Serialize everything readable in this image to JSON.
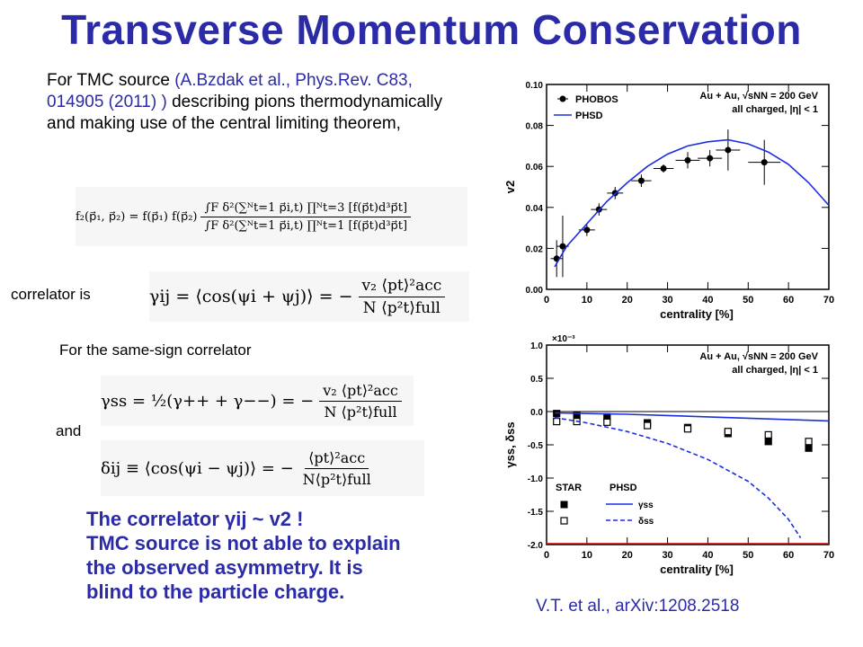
{
  "title": "Transverse Momentum Conservation",
  "intro": {
    "before": "For TMC source ",
    "reference": "(A.Bzdak et al., Phys.Rev. C83, 014905 (2011) )",
    "after": " describing pions thermodynamically and making use of the central limiting theorem,"
  },
  "labels": {
    "correlator_is": "correlator is",
    "same_sign": "For the same-sign correlator",
    "and": "and"
  },
  "equations": {
    "f2_lhs": "f₂(p⃗₁, p⃗₂) = f(p⃗₁) f(p⃗₂)",
    "f2_num": "∫F δ²(∑ᴺt=1 p⃗i,t) ∏ᴺt=3 [f(p⃗t)d³p⃗t]",
    "f2_den": "∫F δ²(∑ᴺt=1 p⃗i,t) ∏ᴺt=1 [f(p⃗t)d³p⃗t]",
    "gamma_lhs": "γij = ⟨cos(ψi + ψj)⟩ = −",
    "gamma_num": "v₂ ⟨pt⟩²acc",
    "gamma_den": "N ⟨p²t⟩full",
    "gss_lhs": "γss = ½(γ++ + γ−−) = −",
    "gss_num": "v₂ ⟨pt⟩²acc",
    "gss_den": "N ⟨p²t⟩full",
    "delta_lhs": "δij ≡ ⟨cos(ψi − ψj)⟩ = −",
    "delta_num": "⟨pt⟩²acc",
    "delta_den": "N⟨p²t⟩full"
  },
  "conclusion": {
    "line1": "The correlator γij ~ v2 !",
    "line2": "TMC source is not able to explain",
    "line3": "the observed asymmetry. It is",
    "line4": "blind to the particle charge."
  },
  "citation": "V.T. et al., arXiv:1208.2518",
  "colors": {
    "title": "#2b2ba8",
    "model": "#1a2ee0",
    "zero_line": "#cc0000"
  },
  "chart_data": [
    {
      "type": "scatter",
      "xlabel": "centrality [%]",
      "ylabel": "v2",
      "xlim": [
        0,
        70
      ],
      "ylim": [
        0,
        0.1
      ],
      "xticks": [
        "0",
        "10",
        "20",
        "30",
        "40",
        "50",
        "60",
        "70"
      ],
      "yticks": [
        "0.00",
        "0.02",
        "0.04",
        "0.06",
        "0.08",
        "0.10"
      ],
      "annotation_line1": "Au + Au, √sNN = 200 GeV",
      "annotation_line2": "all charged, |η| < 1",
      "legend": [
        "PHOBOS",
        "PHSD"
      ],
      "legend_position": "top-left",
      "series": [
        {
          "name": "PHOBOS",
          "style": "points",
          "points": [
            {
              "x": 2.5,
              "y": 0.015,
              "yerr": 0.009,
              "xerr": 1.5
            },
            {
              "x": 4,
              "y": 0.021,
              "yerr": 0.015,
              "xerr": 1.5
            },
            {
              "x": 10,
              "y": 0.029,
              "yerr": 0.003,
              "xerr": 2
            },
            {
              "x": 13,
              "y": 0.039,
              "yerr": 0.003,
              "xerr": 2
            },
            {
              "x": 17,
              "y": 0.047,
              "yerr": 0.003,
              "xerr": 2
            },
            {
              "x": 23.5,
              "y": 0.053,
              "yerr": 0.003,
              "xerr": 2.5
            },
            {
              "x": 29,
              "y": 0.059,
              "yerr": 0.002,
              "xerr": 2.5
            },
            {
              "x": 35,
              "y": 0.063,
              "yerr": 0.004,
              "xerr": 3
            },
            {
              "x": 40.5,
              "y": 0.064,
              "yerr": 0.004,
              "xerr": 3
            },
            {
              "x": 45,
              "y": 0.068,
              "yerr": 0.01,
              "xerr": 3
            },
            {
              "x": 54,
              "y": 0.062,
              "yerr": 0.011,
              "xerr": 4
            }
          ]
        },
        {
          "name": "PHSD",
          "style": "solid",
          "x": [
            2,
            5,
            10,
            15,
            20,
            25,
            30,
            35,
            40,
            45,
            50,
            55,
            60,
            65,
            70
          ],
          "y": [
            0.011,
            0.021,
            0.032,
            0.043,
            0.052,
            0.06,
            0.066,
            0.07,
            0.072,
            0.073,
            0.071,
            0.067,
            0.061,
            0.052,
            0.041
          ]
        }
      ]
    },
    {
      "type": "scatter",
      "xlabel": "centrality [%]",
      "ylabel": "γss, δss",
      "scale_label": "×10⁻³",
      "xlim": [
        0,
        70
      ],
      "ylim": [
        -2.0,
        1.0
      ],
      "xticks": [
        "0",
        "10",
        "20",
        "30",
        "40",
        "50",
        "60",
        "70"
      ],
      "yticks": [
        "1.0",
        "0.5",
        "0.0",
        "-0.5",
        "-1.0",
        "-1.5",
        "-2.0"
      ],
      "annotation_line1": "Au + Au, √sNN = 200 GeV",
      "annotation_line2": "all charged, |η| < 1",
      "legend_headers": [
        "STAR",
        "PHSD"
      ],
      "legend_labels": [
        "γss",
        "δss"
      ],
      "legend_position": "bottom-left",
      "series": [
        {
          "name": "STAR γss",
          "style": "filled-squares",
          "x": [
            2.5,
            7.5,
            15,
            25,
            35,
            45,
            55,
            65
          ],
          "y": [
            -0.03,
            -0.05,
            -0.08,
            -0.17,
            -0.24,
            -0.33,
            -0.45,
            -0.55
          ]
        },
        {
          "name": "STAR δss",
          "style": "open-squares",
          "x": [
            2.5,
            7.5,
            15,
            25,
            35,
            45,
            55,
            65
          ],
          "y": [
            -0.15,
            -0.15,
            -0.16,
            -0.21,
            -0.26,
            -0.3,
            -0.35,
            -0.45
          ]
        },
        {
          "name": "PHSD γss",
          "style": "solid",
          "x": [
            2,
            10,
            20,
            30,
            40,
            50,
            60,
            70
          ],
          "y": [
            -0.02,
            -0.03,
            -0.04,
            -0.06,
            -0.08,
            -0.1,
            -0.12,
            -0.14
          ]
        },
        {
          "name": "PHSD δss",
          "style": "dashed",
          "x": [
            2,
            10,
            20,
            30,
            40,
            50,
            55,
            60,
            63
          ],
          "y": [
            -0.09,
            -0.17,
            -0.3,
            -0.48,
            -0.72,
            -1.05,
            -1.3,
            -1.62,
            -1.9
          ]
        }
      ]
    }
  ]
}
